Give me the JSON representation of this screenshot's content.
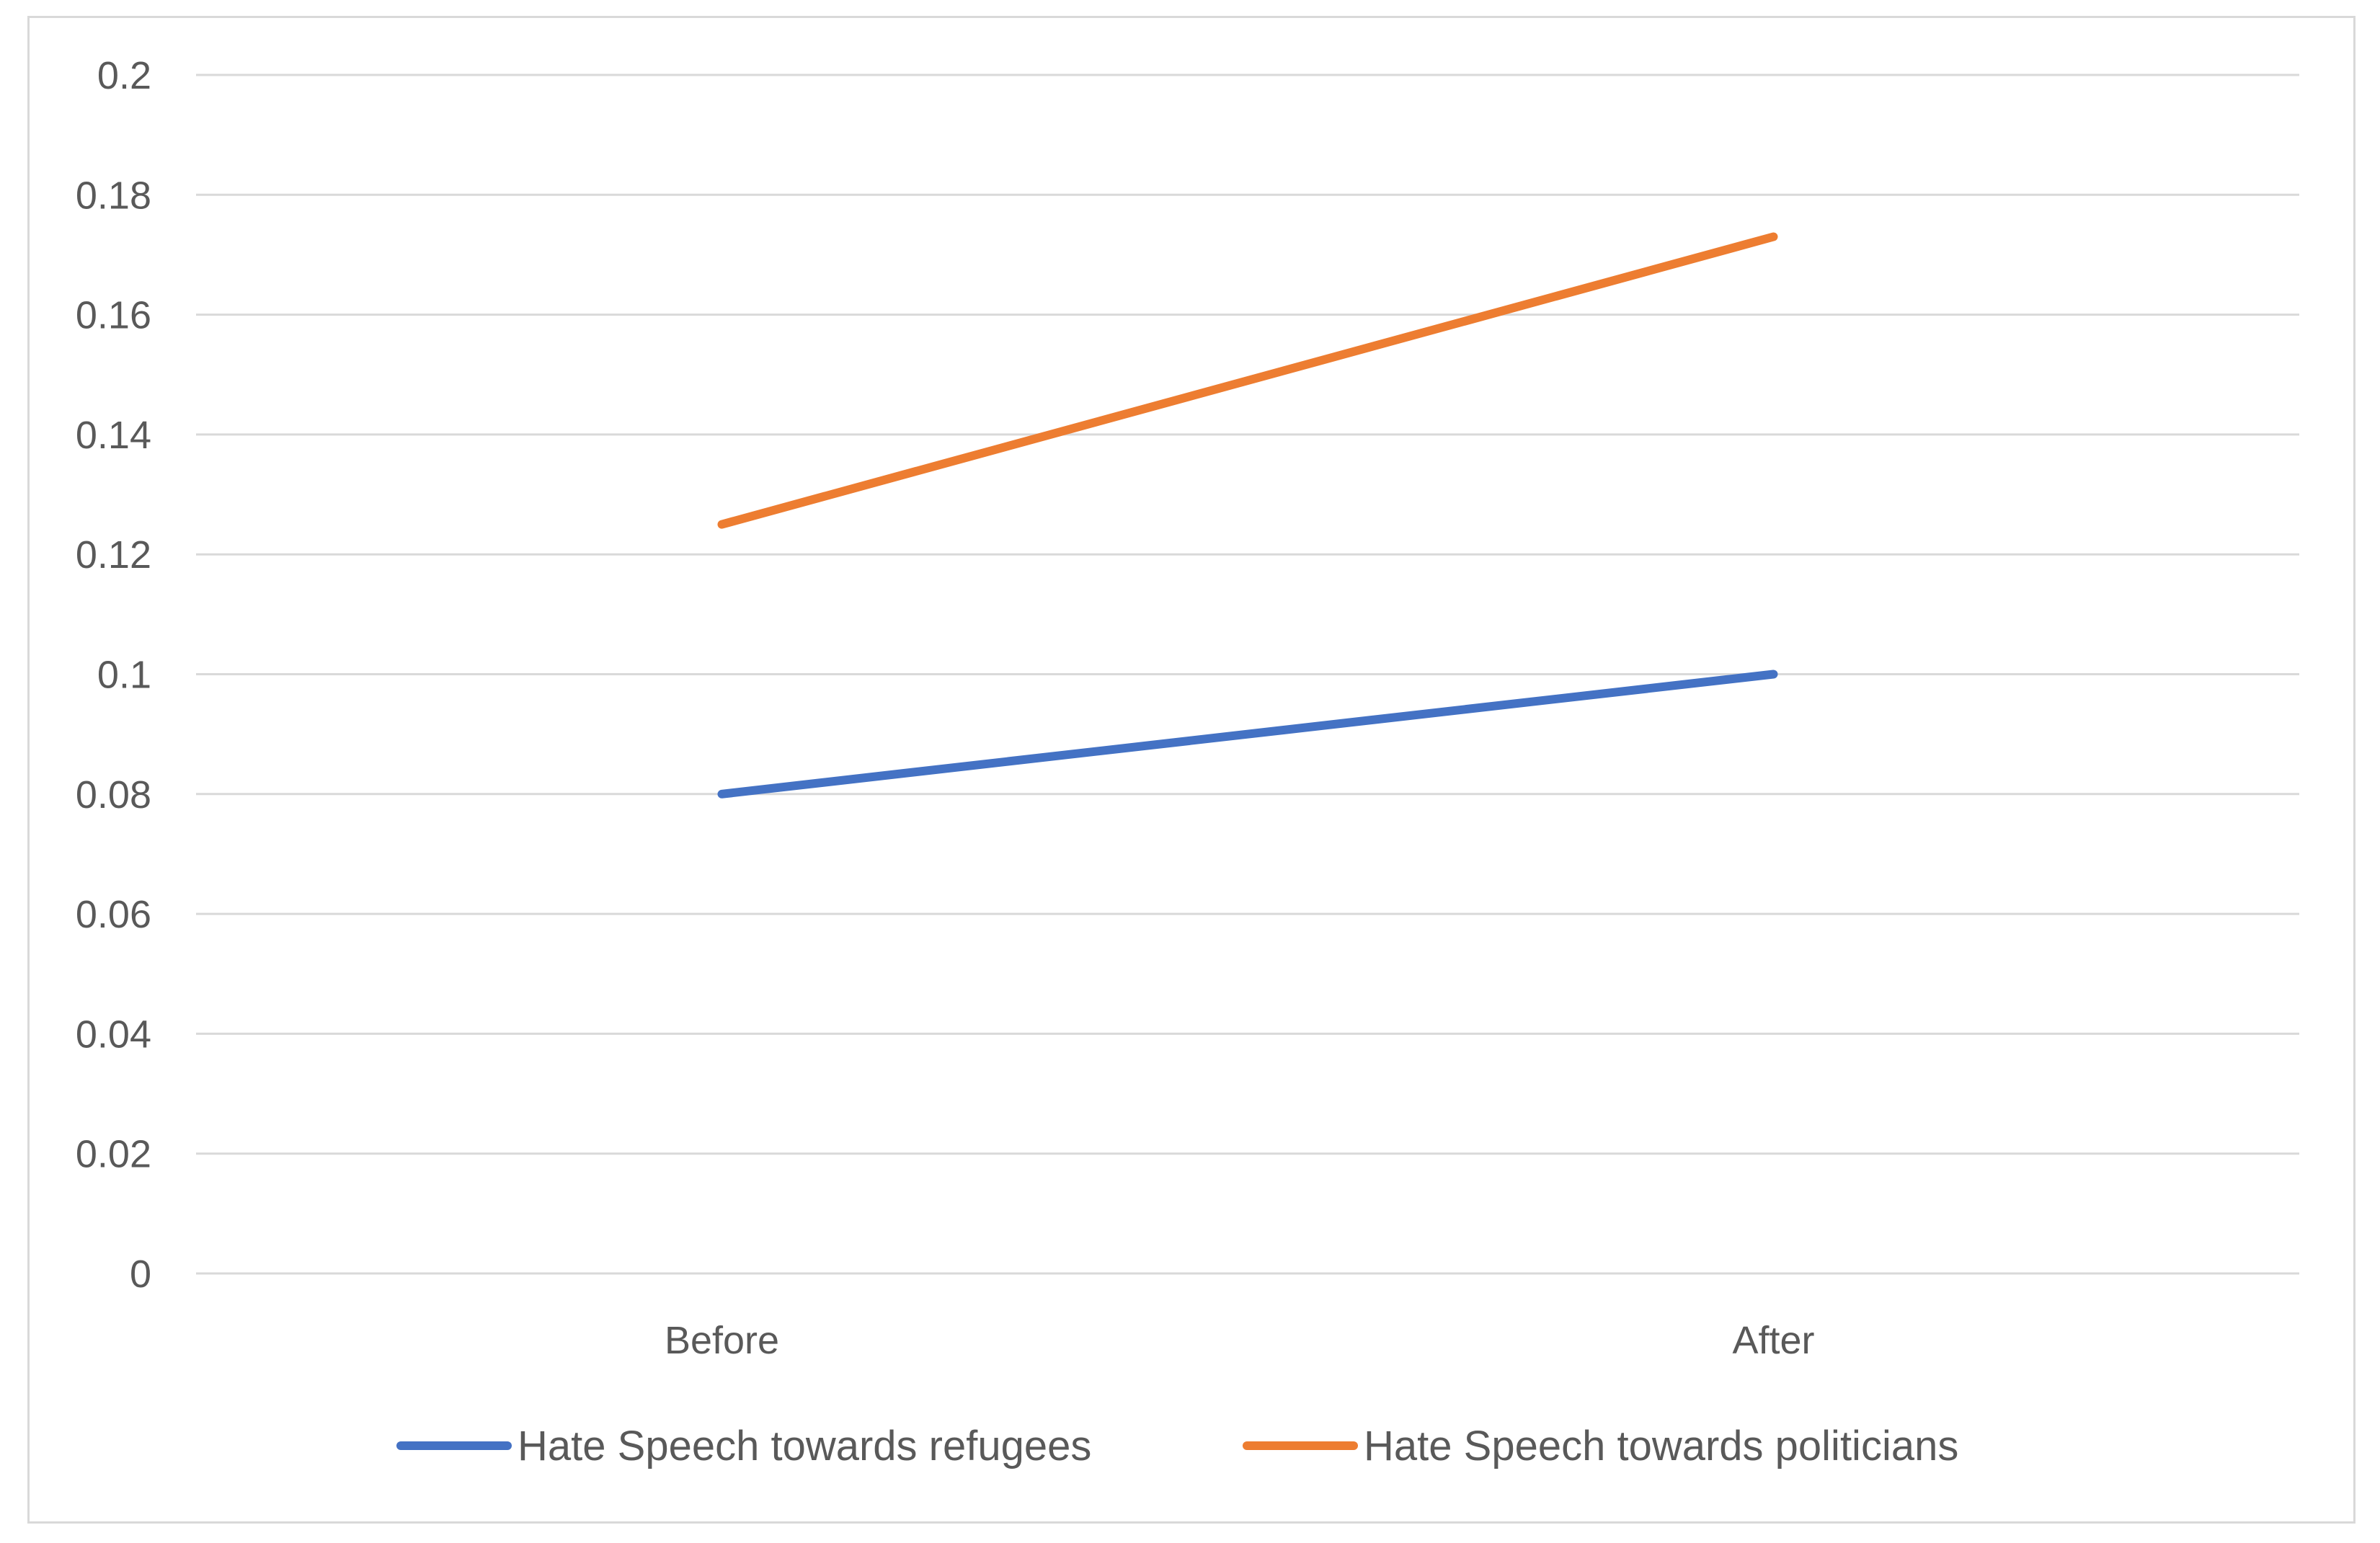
{
  "chart_data": {
    "type": "line",
    "title": "",
    "xlabel": "",
    "ylabel": "",
    "categories": [
      "Before",
      "After"
    ],
    "ylim": [
      0,
      0.2
    ],
    "yticks": [
      "0",
      "0.02",
      "0.04",
      "0.06",
      "0.08",
      "0.1",
      "0.12",
      "0.14",
      "0.16",
      "0.18",
      "0.2"
    ],
    "grid": true,
    "legend_position": "bottom",
    "series": [
      {
        "name": "Hate Speech towards refugees",
        "values": [
          0.08,
          0.1
        ],
        "color": "#4472C4"
      },
      {
        "name": "Hate Speech towards politicians",
        "values": [
          0.125,
          0.173
        ],
        "color": "#ED7D31"
      }
    ],
    "colors": {
      "gridline": "#d9d9d9",
      "text": "#595959",
      "frame": "#d9d9d9"
    }
  }
}
